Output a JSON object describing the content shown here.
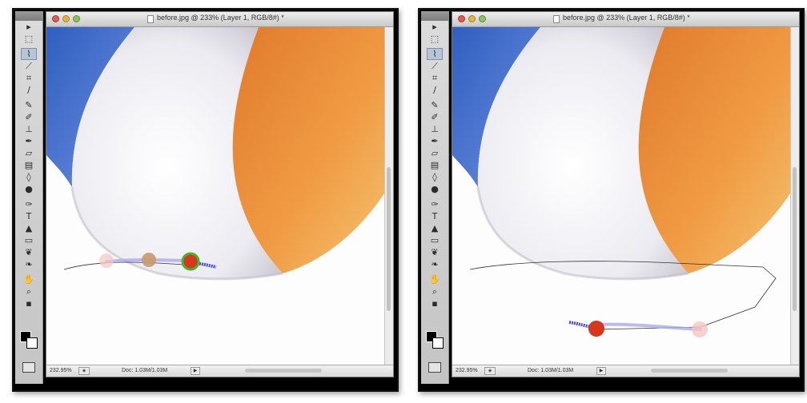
{
  "screens": [
    {
      "title": "before.jpg @ 233% (Layer 1, RGB/8#) *",
      "status": {
        "zoom": "232.95%",
        "doc": "Doc: 1.03M/1.03M"
      }
    },
    {
      "title": "before.jpg @ 233% (Layer 1, RGB/8#) *",
      "status": {
        "zoom": "232.95%",
        "doc": "Doc: 1.03M/1.03M"
      }
    }
  ],
  "tools": [
    {
      "name": "move-tool-icon",
      "glyph": "▸"
    },
    {
      "name": "marquee-tool-icon",
      "glyph": "⬚"
    },
    {
      "name": "polygonal-lasso-tool-icon",
      "glyph": "⌇",
      "active": true
    },
    {
      "name": "quick-selection-tool-icon",
      "glyph": "⟋"
    },
    {
      "name": "crop-tool-icon",
      "glyph": "⌗"
    },
    {
      "name": "eyedropper-tool-icon",
      "glyph": "∕"
    },
    {
      "name": "healing-brush-tool-icon",
      "glyph": "✎"
    },
    {
      "name": "brush-tool-icon",
      "glyph": "✐"
    },
    {
      "name": "clone-stamp-tool-icon",
      "glyph": "⊥"
    },
    {
      "name": "history-brush-tool-icon",
      "glyph": "✒"
    },
    {
      "name": "eraser-tool-icon",
      "glyph": "▱"
    },
    {
      "name": "gradient-tool-icon",
      "glyph": "▤"
    },
    {
      "name": "blur-tool-icon",
      "glyph": "◊"
    },
    {
      "name": "dodge-tool-icon",
      "glyph": "●"
    },
    {
      "name": "pen-tool-icon",
      "glyph": "✑"
    },
    {
      "name": "type-tool-icon",
      "glyph": "T"
    },
    {
      "name": "path-selection-tool-icon",
      "glyph": "▲"
    },
    {
      "name": "rectangle-tool-icon",
      "glyph": "▭"
    },
    {
      "name": "3d-rotate-tool-icon",
      "glyph": "❦"
    },
    {
      "name": "3d-orbit-tool-icon",
      "glyph": "❧"
    },
    {
      "name": "hand-tool-icon",
      "glyph": "✋"
    },
    {
      "name": "zoom-tool-icon",
      "glyph": "⌕"
    },
    {
      "name": "default-colors-icon",
      "glyph": "▪"
    }
  ],
  "colors": {
    "ball_blue": "#3f6fc8",
    "ball_white": "#efeef3",
    "ball_orange": "#ec8c38",
    "background": "#fdfdfd",
    "stroke_marker_blue": "#5a5ad8",
    "marker_red": "#d6371d",
    "marker_green": "#43b531"
  }
}
